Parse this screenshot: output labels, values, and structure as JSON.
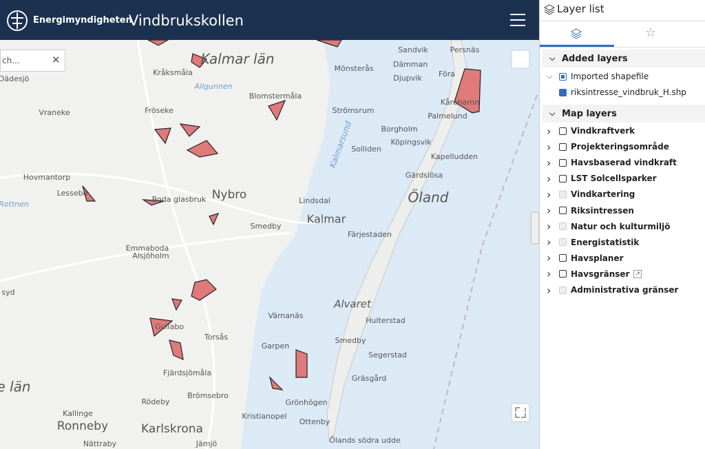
{
  "header": {
    "logo_text": "Energimyndigheten",
    "title": "Vindbrukskollen"
  },
  "search": {
    "placeholder": "ch..."
  },
  "map": {
    "labels": [
      "Kalmar län",
      "Mönsterås",
      "Sandvik",
      "Persnäs",
      "Dämman",
      "Föra",
      "Djupvik",
      "Kårehamn",
      "Palmelund",
      "Blomstermåla",
      "Strömsrum",
      "Borgholm",
      "Köpingsvik",
      "Solliden",
      "Kapelludden",
      "Gärdslösa",
      "Öland",
      "Nybro",
      "Lindsdal",
      "Kalmar",
      "Smedby",
      "Färjestaden",
      "Alvaret",
      "Hulterstad",
      "Smedby",
      "Segerstad",
      "Gräsgård",
      "Grönhögen",
      "Ottenby",
      "Ölands södra udde",
      "Kristianopel",
      "Garpen",
      "Värnanäs",
      "Torsås",
      "Gullabo",
      "Emmaboda",
      "Alsjöholm",
      "Kråksmåla",
      "Dädesjö",
      "Fröseke",
      "Vraneke",
      "Allgunnen",
      "Hovmantorp",
      "Lessebo",
      "Boda glasbruk",
      "Rottnen",
      "Ronneby",
      "Karlskrona",
      "Kallinge",
      "Rödeby",
      "Brömsebro",
      "Fjärdsjömåla",
      "Nättraby",
      "Jämjö",
      "e län",
      "syd",
      "Kalmarsund"
    ]
  },
  "panel": {
    "title": "Layer list",
    "added": {
      "title": "Added layers",
      "group": "Imported shapefile",
      "child": "riksintresse_vindbruk_H.shp"
    },
    "map_layers": {
      "title": "Map layers",
      "items": [
        "Vindkraftverk",
        "Projekteringsområde",
        "Havsbaserad vindkraft",
        "LST Solcellsparker",
        "Vindkartering",
        "Riksintressen",
        "Natur och kulturmiljö",
        "Energistatistik",
        "Havsplaner",
        "Havsgränser",
        "Administrativa gränser"
      ]
    }
  }
}
